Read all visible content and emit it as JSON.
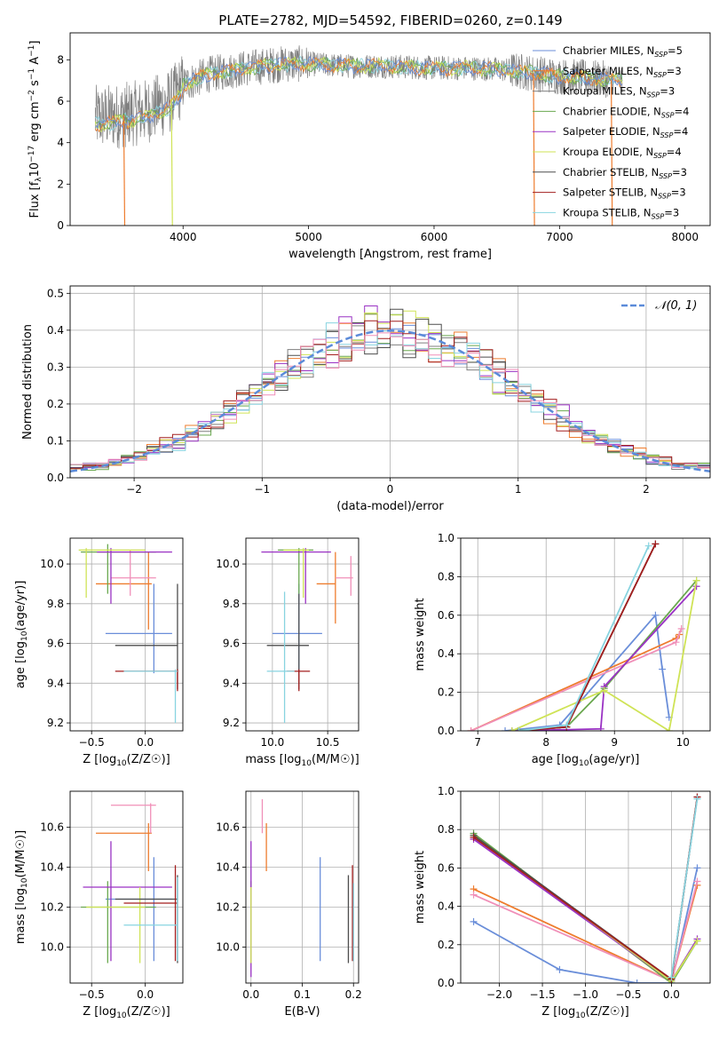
{
  "figure": {
    "title": "PLATE=2782, MJD=54592, FIBERID=0260, z=0.149",
    "model_colors": [
      "#6a8ed9",
      "#ee7c2e",
      "#7f7f7f",
      "#6aa84f",
      "#9a32c4",
      "#cfe356",
      "#4d4d4d",
      "#a31f1f",
      "#88d4e0"
    ],
    "extra_colors": {
      "pink": "#f08fb8"
    }
  },
  "chart_data": [
    {
      "id": "spectrum",
      "type": "line",
      "xlabel": "wavelength [Angstrom, rest frame]",
      "ylabel": "Flux [f",
      "xlim": [
        3100,
        8200
      ],
      "ylim": [
        0,
        9.3
      ],
      "xticks": [
        4000,
        5000,
        6000,
        7000,
        8000
      ],
      "yticks": [
        0,
        2,
        4,
        6,
        8
      ],
      "grid": false,
      "legend_placement": "right",
      "legend": [
        "Chabrier MILES, N_SSP=5",
        "Salpeter MILES, N_SSP=3",
        "Kroupa MILES, N_SSP=3",
        "Chabrier ELODIE, N_SSP=4",
        "Salpeter ELODIE, N_SSP=4",
        "Kroupa ELODIE, N_SSP=4",
        "Chabrier STELIB, N_SSP=3",
        "Salpeter STELIB, N_SSP=3",
        "Kroupa STELIB, N_SSP=3"
      ],
      "data_continuum": {
        "x": [
          3300,
          3500,
          3700,
          3900,
          4000,
          4200,
          4500,
          4800,
          5000,
          5300,
          5600,
          6000,
          6300,
          6600,
          7000,
          7300,
          7500
        ],
        "y": [
          5.2,
          5.3,
          5.5,
          6.0,
          6.8,
          7.3,
          7.6,
          7.8,
          7.8,
          7.7,
          7.7,
          7.6,
          7.6,
          7.5,
          7.2,
          7.1,
          7.0
        ]
      },
      "model_drops": [
        {
          "series": 1,
          "x": 3535
        },
        {
          "series": 5,
          "x": 3915
        },
        {
          "series": 1,
          "x": 6800
        },
        {
          "series": 1,
          "x": 7420
        }
      ]
    },
    {
      "id": "residuals",
      "type": "histogram",
      "xlabel": "(data-model)/error",
      "ylabel": "Normed distribution",
      "xlim": [
        -2.5,
        2.5
      ],
      "ylim": [
        0,
        0.52
      ],
      "xticks": [
        -2,
        -1,
        0,
        1,
        2
      ],
      "yticks": [
        0.0,
        0.1,
        0.2,
        0.3,
        0.4,
        0.5
      ],
      "grid": true,
      "bin_width": 0.1,
      "legend_placement": "top-right",
      "legend": [
        "𝒩(0, 1)"
      ],
      "normal_curve": {
        "mu": 0,
        "sigma": 1,
        "color": "#5b8bd9"
      }
    },
    {
      "id": "age_vs_Z",
      "type": "errorbar",
      "xlabel": "Z [log",
      "ylabel": "age  [log",
      "xlim": [
        -0.7,
        0.35
      ],
      "ylim": [
        9.16,
        10.13
      ],
      "xticks": [
        -0.5,
        0.0
      ],
      "yticks": [
        9.2,
        9.4,
        9.6,
        9.8,
        10.0
      ],
      "grid": true,
      "points": [
        {
          "x": 0.08,
          "y": 9.65,
          "xlo": -0.37,
          "xhi": 0.25,
          "ylo": 9.45,
          "yhi": 9.9,
          "c": 0
        },
        {
          "x": 0.03,
          "y": 9.9,
          "xlo": -0.46,
          "xhi": 0.06,
          "ylo": 9.67,
          "yhi": 10.06,
          "c": 1
        },
        {
          "x": -0.14,
          "y": 9.93,
          "xlo": -0.32,
          "xhi": 0.1,
          "ylo": 9.84,
          "yhi": 10.07,
          "c": 9
        },
        {
          "x": -0.35,
          "y": 10.06,
          "xlo": -0.6,
          "xhi": 0.1,
          "ylo": 9.85,
          "yhi": 10.1,
          "c": 3
        },
        {
          "x": -0.32,
          "y": 10.06,
          "xlo": -0.45,
          "xhi": 0.25,
          "ylo": 9.8,
          "yhi": 10.08,
          "c": 4
        },
        {
          "x": -0.55,
          "y": 10.07,
          "xlo": -0.62,
          "xhi": 0.0,
          "ylo": 9.83,
          "yhi": 10.08,
          "c": 5
        },
        {
          "x": 0.3,
          "y": 9.59,
          "xlo": -0.28,
          "xhi": 0.3,
          "ylo": 9.37,
          "yhi": 9.9,
          "c": 6
        },
        {
          "x": 0.3,
          "y": 9.46,
          "xlo": -0.28,
          "xhi": 0.3,
          "ylo": 9.36,
          "yhi": 9.47,
          "c": 7
        },
        {
          "x": 0.28,
          "y": 9.46,
          "xlo": -0.2,
          "xhi": 0.3,
          "ylo": 9.2,
          "yhi": 9.47,
          "c": 8
        }
      ]
    },
    {
      "id": "age_vs_mass",
      "type": "errorbar",
      "xlabel": "mass [log",
      "ylabel": "",
      "xlim": [
        9.76,
        10.78
      ],
      "ylim": [
        9.16,
        10.13
      ],
      "xticks": [
        10.0,
        10.5
      ],
      "yticks": [
        9.2,
        9.4,
        9.6,
        9.8,
        10.0
      ],
      "grid": true,
      "points": [
        {
          "x": 10.24,
          "y": 9.65,
          "xlo": 10.0,
          "xhi": 10.45,
          "ylo": 9.45,
          "yhi": 9.9,
          "c": 0
        },
        {
          "x": 10.57,
          "y": 9.9,
          "xlo": 10.4,
          "xhi": 10.57,
          "ylo": 9.7,
          "yhi": 10.06,
          "c": 1
        },
        {
          "x": 10.71,
          "y": 9.93,
          "xlo": 10.57,
          "xhi": 10.73,
          "ylo": 9.84,
          "yhi": 10.04,
          "c": 9
        },
        {
          "x": 10.24,
          "y": 10.07,
          "xlo": 10.05,
          "xhi": 10.37,
          "ylo": 9.85,
          "yhi": 10.08,
          "c": 3
        },
        {
          "x": 10.3,
          "y": 10.06,
          "xlo": 9.9,
          "xhi": 10.53,
          "ylo": 9.8,
          "yhi": 10.08,
          "c": 4
        },
        {
          "x": 10.28,
          "y": 10.07,
          "xlo": 10.1,
          "xhi": 10.33,
          "ylo": 9.83,
          "yhi": 10.08,
          "c": 5
        },
        {
          "x": 10.24,
          "y": 9.59,
          "xlo": 9.95,
          "xhi": 10.33,
          "ylo": 9.37,
          "yhi": 9.85,
          "c": 6
        },
        {
          "x": 10.24,
          "y": 9.46,
          "xlo": 10.13,
          "xhi": 10.34,
          "ylo": 9.36,
          "yhi": 9.47,
          "c": 7
        },
        {
          "x": 10.11,
          "y": 9.46,
          "xlo": 9.95,
          "xhi": 10.2,
          "ylo": 9.2,
          "yhi": 9.86,
          "c": 8
        }
      ]
    },
    {
      "id": "massweight_vs_age",
      "type": "line",
      "xlabel": "age  [log",
      "ylabel": "mass weight",
      "xlim": [
        6.75,
        10.4
      ],
      "ylim": [
        0,
        1.0
      ],
      "xticks": [
        7,
        8,
        9,
        10
      ],
      "yticks": [
        0.0,
        0.2,
        0.4,
        0.6,
        0.8,
        1.0
      ],
      "grid": true,
      "series": [
        {
          "c": 0,
          "x": [
            7.4,
            8.2,
            9.6,
            9.7,
            9.8
          ],
          "y": [
            0.0,
            0.03,
            0.6,
            0.32,
            0.07
          ]
        },
        {
          "c": 1,
          "x": [
            6.9,
            9.9,
            9.95
          ],
          "y": [
            0.0,
            0.48,
            0.5
          ]
        },
        {
          "c": 9,
          "x": [
            6.9,
            9.9,
            9.98
          ],
          "y": [
            0.0,
            0.46,
            0.53
          ]
        },
        {
          "c": 3,
          "x": [
            7.5,
            8.3,
            8.85,
            10.2
          ],
          "y": [
            0.0,
            0.02,
            0.22,
            0.78
          ]
        },
        {
          "c": 4,
          "x": [
            7.5,
            8.8,
            8.85,
            10.2
          ],
          "y": [
            0.0,
            0.01,
            0.23,
            0.75
          ]
        },
        {
          "c": 5,
          "x": [
            7.5,
            8.85,
            9.8,
            10.2
          ],
          "y": [
            0.0,
            0.21,
            0.0,
            0.78
          ]
        },
        {
          "c": 6,
          "x": [
            7.6,
            8.3,
            9.6
          ],
          "y": [
            0.0,
            0.02,
            0.97
          ]
        },
        {
          "c": 7,
          "x": [
            7.6,
            8.3,
            9.6
          ],
          "y": [
            0.0,
            0.02,
            0.97
          ]
        },
        {
          "c": 8,
          "x": [
            7.6,
            8.3,
            9.5
          ],
          "y": [
            0.0,
            0.03,
            0.96
          ]
        }
      ]
    },
    {
      "id": "mass_vs_Z",
      "type": "errorbar",
      "xlabel": "Z [log",
      "ylabel": "mass [log",
      "xlim": [
        -0.7,
        0.35
      ],
      "ylim": [
        9.82,
        10.78
      ],
      "xticks": [
        -0.5,
        0.0
      ],
      "yticks": [
        10.0,
        10.2,
        10.4,
        10.6
      ],
      "grid": true,
      "points": [
        {
          "x": 0.08,
          "y": 10.24,
          "xlo": -0.37,
          "xhi": 0.25,
          "ylo": 9.93,
          "yhi": 10.45,
          "c": 0
        },
        {
          "x": 0.03,
          "y": 10.57,
          "xlo": -0.46,
          "xhi": 0.06,
          "ylo": 10.38,
          "yhi": 10.62,
          "c": 1
        },
        {
          "x": 0.05,
          "y": 10.71,
          "xlo": -0.32,
          "xhi": 0.1,
          "ylo": 10.57,
          "yhi": 10.72,
          "c": 9
        },
        {
          "x": -0.35,
          "y": 10.2,
          "xlo": -0.6,
          "xhi": 0.1,
          "ylo": 9.92,
          "yhi": 10.33,
          "c": 3
        },
        {
          "x": -0.32,
          "y": 10.3,
          "xlo": -0.58,
          "xhi": 0.25,
          "ylo": 9.93,
          "yhi": 10.53,
          "c": 4
        },
        {
          "x": -0.05,
          "y": 10.2,
          "xlo": -0.55,
          "xhi": 0.0,
          "ylo": 9.92,
          "yhi": 10.3,
          "c": 5
        },
        {
          "x": 0.3,
          "y": 10.24,
          "xlo": -0.28,
          "xhi": 0.3,
          "ylo": 9.92,
          "yhi": 10.36,
          "c": 6
        },
        {
          "x": 0.28,
          "y": 10.22,
          "xlo": -0.2,
          "xhi": 0.3,
          "ylo": 9.93,
          "yhi": 10.41,
          "c": 7
        },
        {
          "x": 0.3,
          "y": 10.11,
          "xlo": -0.2,
          "xhi": 0.3,
          "ylo": 9.93,
          "yhi": 10.35,
          "c": 8
        }
      ]
    },
    {
      "id": "mass_vs_EBV",
      "type": "errorbar",
      "xlabel": "E(B-V)",
      "ylabel": "",
      "xlim": [
        -0.01,
        0.21
      ],
      "ylim": [
        9.82,
        10.78
      ],
      "xticks": [
        0.0,
        0.1,
        0.2
      ],
      "yticks": [
        10.0,
        10.2,
        10.4,
        10.6
      ],
      "grid": true,
      "points": [
        {
          "x": 0.135,
          "y": 10.24,
          "ylo": 9.93,
          "yhi": 10.45,
          "c": 0
        },
        {
          "x": 0.03,
          "y": 10.57,
          "ylo": 10.38,
          "yhi": 10.62,
          "c": 1
        },
        {
          "x": 0.022,
          "y": 10.71,
          "ylo": 10.57,
          "yhi": 10.74,
          "c": 9
        },
        {
          "x": 0.0,
          "y": 10.2,
          "ylo": 9.92,
          "yhi": 10.33,
          "c": 3
        },
        {
          "x": 0.0,
          "y": 10.3,
          "ylo": 9.85,
          "yhi": 10.53,
          "c": 4
        },
        {
          "x": 0.0,
          "y": 10.2,
          "ylo": 9.92,
          "yhi": 10.3,
          "c": 5
        },
        {
          "x": 0.19,
          "y": 10.24,
          "ylo": 9.92,
          "yhi": 10.36,
          "c": 6
        },
        {
          "x": 0.198,
          "y": 10.22,
          "ylo": 9.93,
          "yhi": 10.41,
          "c": 7
        },
        {
          "x": 0.2,
          "y": 10.11,
          "ylo": 9.93,
          "yhi": 10.32,
          "c": 8
        }
      ]
    },
    {
      "id": "massweight_vs_Z",
      "type": "line",
      "xlabel": "Z [log",
      "ylabel": "mass weight",
      "xlim": [
        -2.45,
        0.45
      ],
      "ylim": [
        0,
        1.0
      ],
      "xticks": [
        -2.0,
        -1.5,
        -1.0,
        -0.5,
        0.0
      ],
      "yticks": [
        0.0,
        0.2,
        0.4,
        0.6,
        0.8,
        1.0
      ],
      "grid": true,
      "series": [
        {
          "c": 0,
          "x": [
            -2.3,
            -1.3,
            -0.4,
            0.0,
            0.3
          ],
          "y": [
            0.32,
            0.07,
            0.0,
            0.0,
            0.6
          ]
        },
        {
          "c": 1,
          "x": [
            -2.3,
            0.0,
            0.3
          ],
          "y": [
            0.49,
            0.01,
            0.51
          ]
        },
        {
          "c": 9,
          "x": [
            -2.3,
            0.0,
            0.3
          ],
          "y": [
            0.46,
            0.01,
            0.53
          ]
        },
        {
          "c": 3,
          "x": [
            -2.3,
            0.0,
            0.3
          ],
          "y": [
            0.78,
            0.0,
            0.22
          ]
        },
        {
          "c": 4,
          "x": [
            -2.3,
            0.0,
            0.3
          ],
          "y": [
            0.75,
            0.01,
            0.23
          ]
        },
        {
          "c": 5,
          "x": [
            -2.3,
            0.0,
            0.3
          ],
          "y": [
            0.77,
            0.01,
            0.22
          ]
        },
        {
          "c": 6,
          "x": [
            -2.3,
            0.0,
            0.3
          ],
          "y": [
            0.77,
            0.02,
            0.97
          ]
        },
        {
          "c": 7,
          "x": [
            -2.3,
            0.0,
            0.3
          ],
          "y": [
            0.76,
            0.02,
            0.97
          ]
        },
        {
          "c": 8,
          "x": [
            0.0,
            0.3
          ],
          "y": [
            0.03,
            0.96
          ]
        }
      ]
    }
  ]
}
